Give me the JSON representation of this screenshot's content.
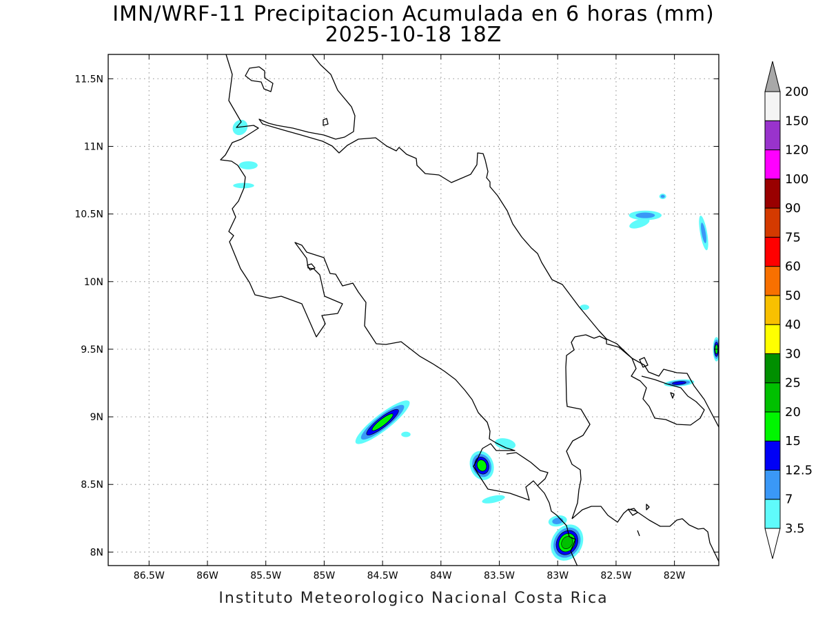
{
  "title": {
    "line1": "IMN/WRF-11 Precipitacion Acumulada en 6 horas (mm)",
    "line2": "2025-10-18 18Z"
  },
  "footer": "Instituto Meteorologico Nacional Costa Rica",
  "map": {
    "lon_range": [
      -86.85,
      -81.62
    ],
    "lat_range": [
      7.9,
      11.68
    ],
    "x_ticks": [
      {
        "lon": -86.5,
        "label": "86.5W"
      },
      {
        "lon": -86.0,
        "label": "86W"
      },
      {
        "lon": -85.5,
        "label": "85.5W"
      },
      {
        "lon": -85.0,
        "label": "85W"
      },
      {
        "lon": -84.5,
        "label": "84.5W"
      },
      {
        "lon": -84.0,
        "label": "84W"
      },
      {
        "lon": -83.5,
        "label": "83.5W"
      },
      {
        "lon": -83.0,
        "label": "83W"
      },
      {
        "lon": -82.5,
        "label": "82.5W"
      },
      {
        "lon": -82.0,
        "label": "82W"
      }
    ],
    "y_ticks": [
      {
        "lat": 11.5,
        "label": "11.5N"
      },
      {
        "lat": 11.0,
        "label": "11N"
      },
      {
        "lat": 10.5,
        "label": "10.5N"
      },
      {
        "lat": 10.0,
        "label": "10N"
      },
      {
        "lat": 9.5,
        "label": "9.5N"
      },
      {
        "lat": 9.0,
        "label": "9N"
      },
      {
        "lat": 8.5,
        "label": "8.5N"
      },
      {
        "lat": 8.0,
        "label": "8N"
      }
    ],
    "grid": "dotted"
  },
  "colorbar": {
    "levels": [
      "3.5",
      "7",
      "12.5",
      "15",
      "20",
      "25",
      "30",
      "40",
      "50",
      "60",
      "75",
      "90",
      "100",
      "120",
      "150",
      "200"
    ],
    "colors": [
      "#ffffff",
      "#5ffbfb",
      "#3a98f7",
      "#0000f6",
      "#00f600",
      "#00c000",
      "#008f00",
      "#ffff00",
      "#f8c000",
      "#f87000",
      "#ff0000",
      "#d43a00",
      "#990000",
      "#ff00ff",
      "#9933cc",
      "#f4f4f4"
    ],
    "over_color": "#a8a8a8"
  },
  "precip_areas": [
    {
      "name": "nicoya-nw-coast-1",
      "lon": -85.72,
      "lat": 11.14,
      "rx": 0.06,
      "ry": 0.06,
      "rot": -40,
      "max": 7
    },
    {
      "name": "nicoya-nw-coast-2",
      "lon": -85.65,
      "lat": 10.86,
      "rx": 0.08,
      "ry": 0.03,
      "rot": 0,
      "max": 7
    },
    {
      "name": "nicoya-nw-coast-3",
      "lon": -85.69,
      "lat": 10.71,
      "rx": 0.09,
      "ry": 0.02,
      "rot": 0,
      "max": 7
    },
    {
      "name": "osa-offshore",
      "lon": -84.5,
      "lat": 8.96,
      "rx": 0.29,
      "ry": 0.06,
      "rot": 38,
      "max": 20
    },
    {
      "name": "osa-offshore-small",
      "lon": -84.3,
      "lat": 8.87,
      "rx": 0.04,
      "ry": 0.02,
      "rot": 0,
      "max": 7
    },
    {
      "name": "golfito-cell",
      "lon": -83.65,
      "lat": 8.64,
      "rx": 0.1,
      "ry": 0.11,
      "rot": 20,
      "max": 20
    },
    {
      "name": "golfito-north",
      "lon": -83.45,
      "lat": 8.8,
      "rx": 0.09,
      "ry": 0.04,
      "rot": -10,
      "max": 7
    },
    {
      "name": "burica-offshore",
      "lon": -83.55,
      "lat": 8.39,
      "rx": 0.1,
      "ry": 0.025,
      "rot": 12,
      "max": 7
    },
    {
      "name": "burica-cells",
      "lon": -82.92,
      "lat": 8.07,
      "rx": 0.13,
      "ry": 0.14,
      "rot": -30,
      "max": 25
    },
    {
      "name": "burica-east",
      "lon": -83.0,
      "lat": 8.23,
      "rx": 0.08,
      "ry": 0.04,
      "rot": 10,
      "max": 12.5
    },
    {
      "name": "caribbean-cell-1",
      "lon": -82.25,
      "lat": 10.49,
      "rx": 0.14,
      "ry": 0.035,
      "rot": 0,
      "max": 12.5
    },
    {
      "name": "caribbean-cell-2",
      "lon": -82.3,
      "lat": 10.43,
      "rx": 0.09,
      "ry": 0.03,
      "rot": 18,
      "max": 7
    },
    {
      "name": "caribbean-cell-3",
      "lon": -81.75,
      "lat": 10.36,
      "rx": 0.03,
      "ry": 0.13,
      "rot": 10,
      "max": 12.5
    },
    {
      "name": "caribbean-cell-4",
      "lon": -82.1,
      "lat": 10.63,
      "rx": 0.03,
      "ry": 0.02,
      "rot": 0,
      "max": 12.5
    },
    {
      "name": "bocas-cell",
      "lon": -81.96,
      "lat": 9.25,
      "rx": 0.13,
      "ry": 0.025,
      "rot": 5,
      "max": 15
    },
    {
      "name": "east-edge-cell",
      "lon": -81.64,
      "lat": 9.5,
      "rx": 0.03,
      "ry": 0.09,
      "rot": 0,
      "max": 20
    },
    {
      "name": "limon-offshore",
      "lon": -82.77,
      "lat": 9.81,
      "rx": 0.04,
      "ry": 0.02,
      "rot": 0,
      "max": 7
    }
  ]
}
